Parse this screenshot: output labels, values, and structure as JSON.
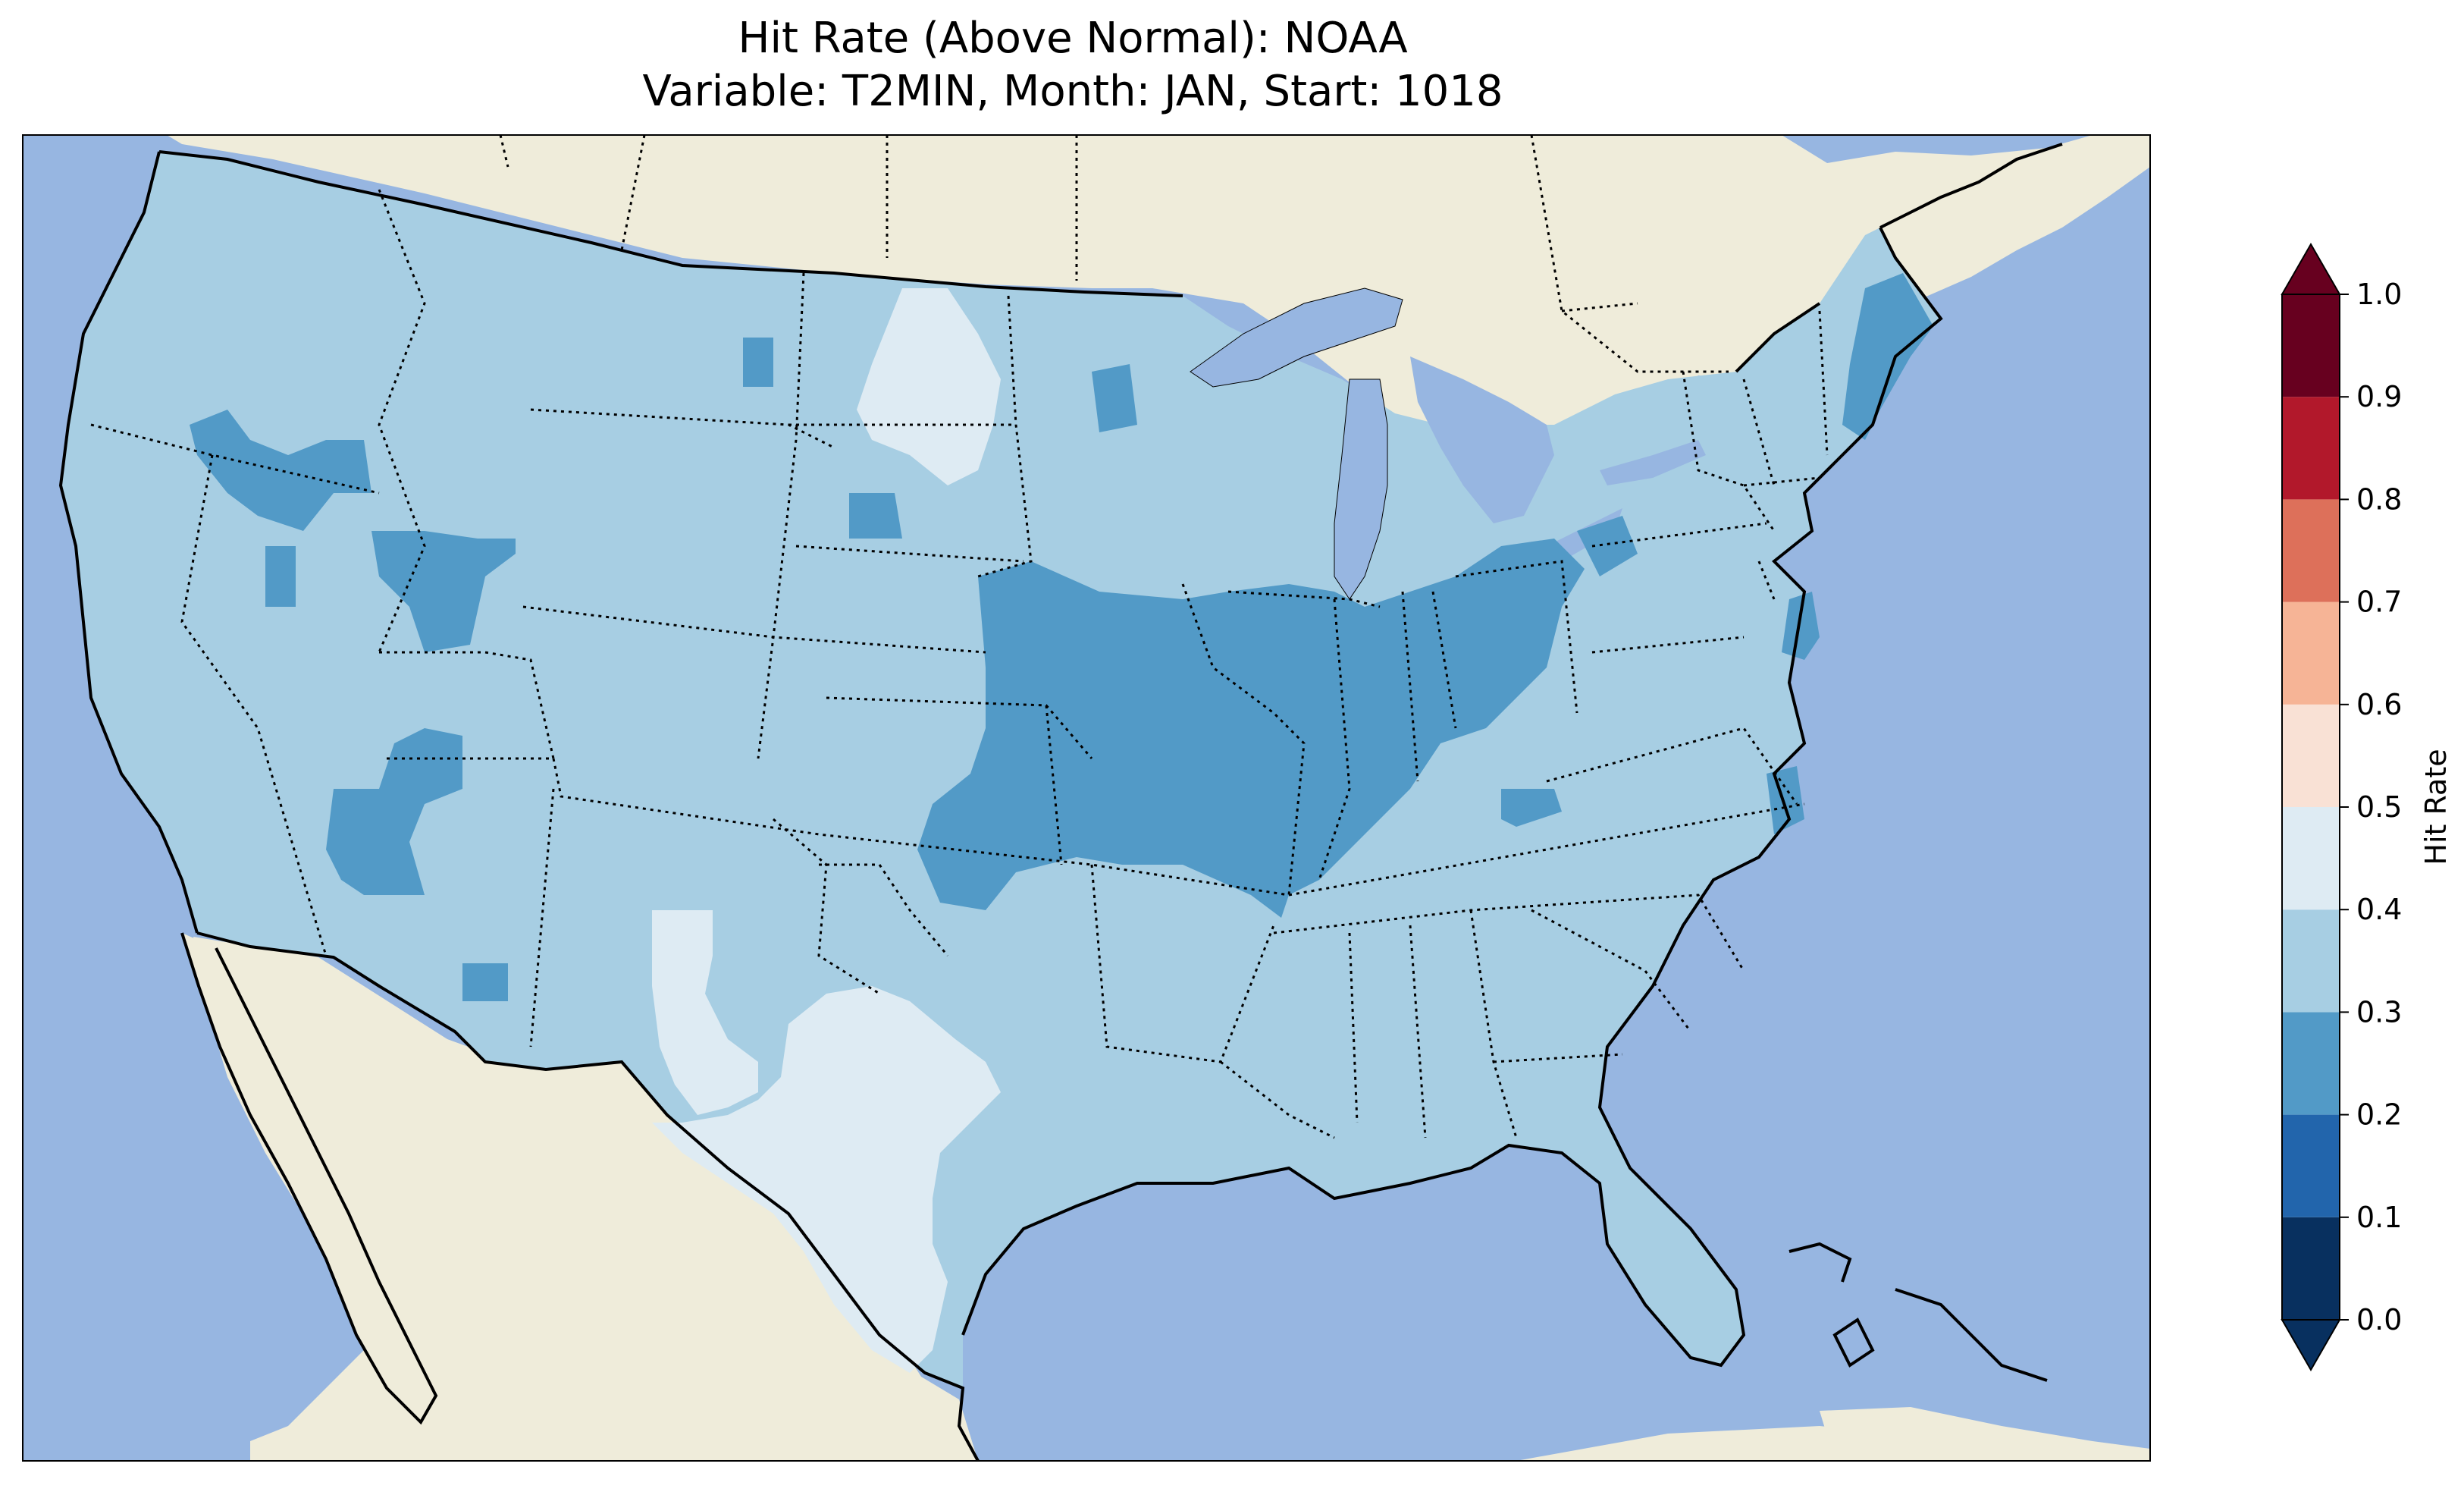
{
  "title": {
    "line1": "Hit Rate (Above Normal): NOAA",
    "line2": "Variable: T2MIN, Month: JAN, Start: 1018"
  },
  "colors": {
    "ocean": "#97b6e1",
    "land": "#efecda",
    "bin_0_1": "#08305f",
    "bin_1_2": "#2265ac",
    "bin_2_3": "#529ac7",
    "bin_3_4": "#a7cee3",
    "bin_4_5": "#deebf3",
    "bin_5_6": "#f9e1d5",
    "bin_6_7": "#f6b496",
    "bin_7_8": "#dd705a",
    "bin_8_9": "#b2182b",
    "bin_9_10": "#67001f"
  },
  "colorbar": {
    "label": "Hit Rate",
    "ticks": [
      "0.0",
      "0.1",
      "0.2",
      "0.3",
      "0.4",
      "0.5",
      "0.6",
      "0.7",
      "0.8",
      "0.9",
      "1.0"
    ],
    "bins": [
      "#08305f",
      "#2265ac",
      "#529ac7",
      "#a7cee3",
      "#deebf3",
      "#f9e1d5",
      "#f6b496",
      "#dd705a",
      "#b2182b",
      "#67001f"
    ]
  }
}
